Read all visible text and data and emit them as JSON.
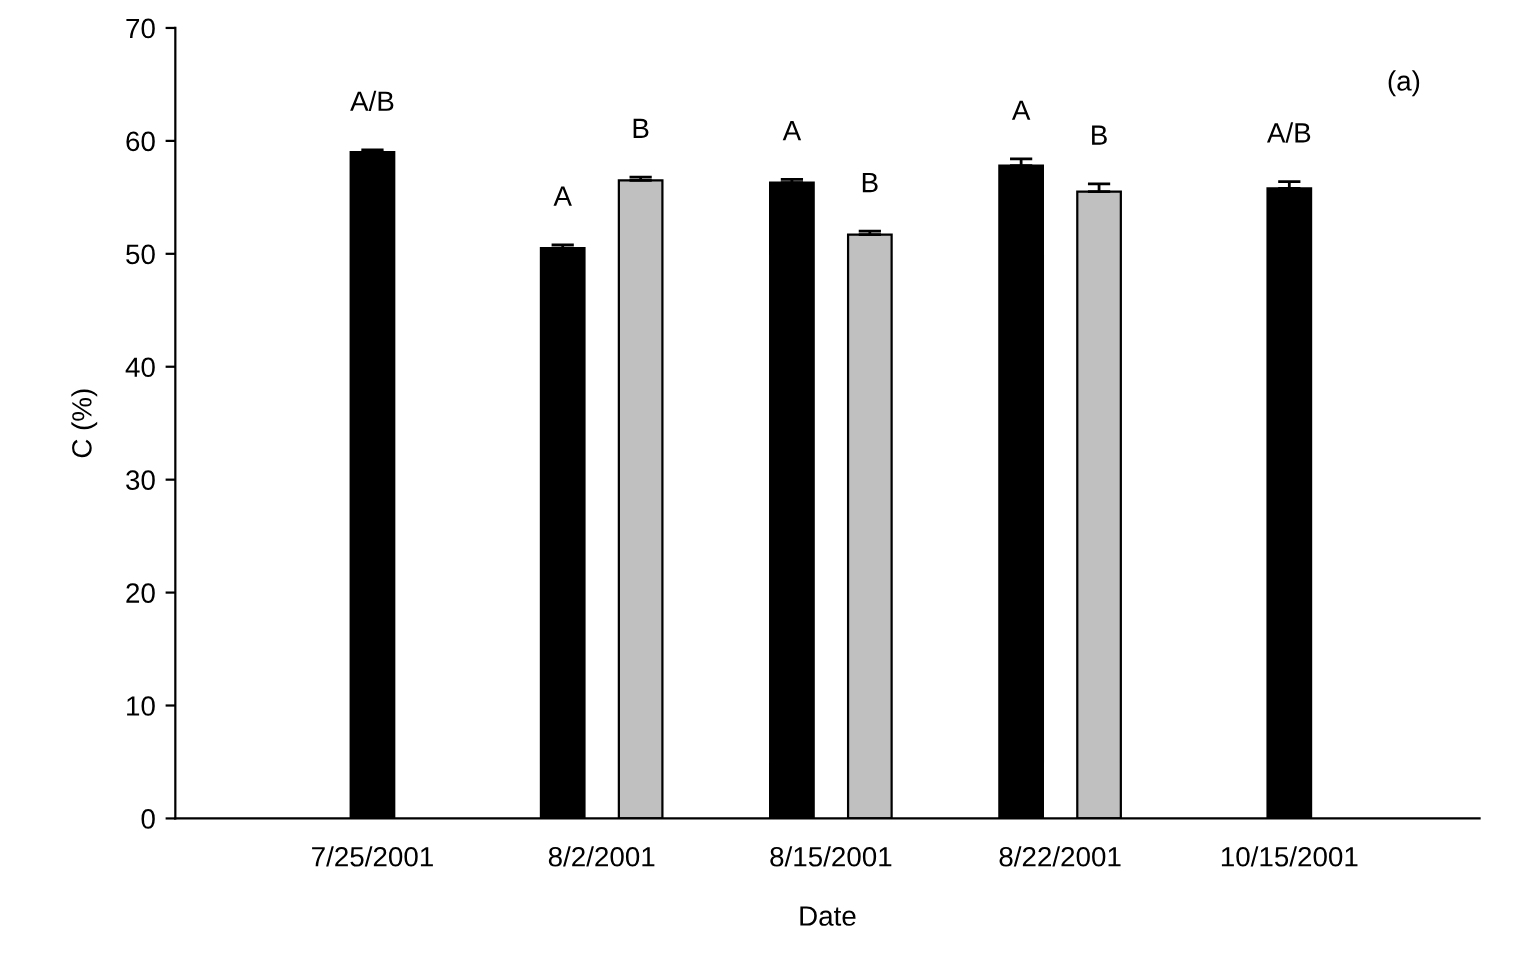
{
  "chart_data": {
    "type": "bar",
    "xlabel": "Date",
    "ylabel": "C (%)",
    "categories": [
      "7/25/2001",
      "8/2/2001",
      "8/15/2001",
      "8/22/2001",
      "10/15/2001"
    ],
    "series": [
      {
        "color": "#000000",
        "values": [
          59.0,
          50.5,
          56.3,
          57.8,
          55.8
        ],
        "errors": [
          0.2,
          0.3,
          0.3,
          0.6,
          0.6
        ],
        "value_labels": [
          "A/B",
          "A",
          "A",
          "A",
          "A/B"
        ]
      },
      {
        "color": "#c0c0c0",
        "values": [
          null,
          56.5,
          51.7,
          55.5,
          null
        ],
        "errors": [
          null,
          0.3,
          0.3,
          0.7,
          null
        ],
        "value_labels": [
          null,
          "B",
          "B",
          "B",
          null
        ]
      }
    ],
    "ylim": [
      0,
      70
    ],
    "yticks": [
      0,
      10,
      20,
      30,
      40,
      50,
      60,
      70
    ],
    "grid": false,
    "legend": false,
    "annotations": [
      "(a)"
    ]
  }
}
